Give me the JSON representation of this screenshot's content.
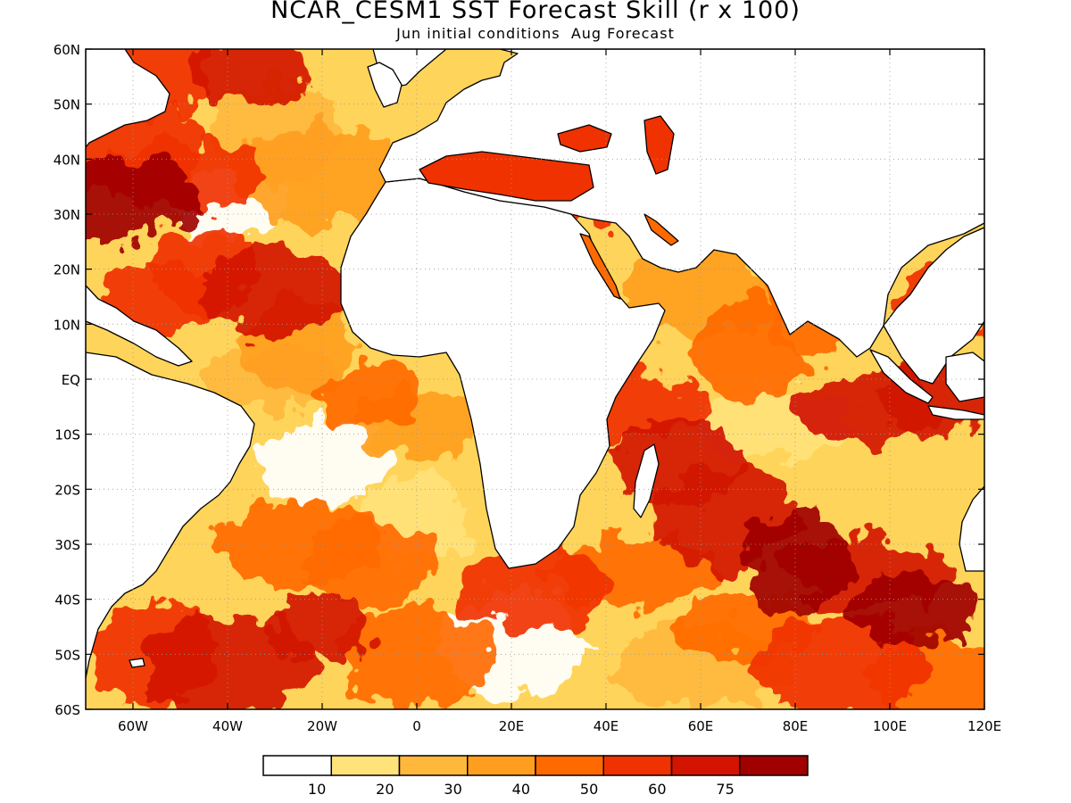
{
  "header": {
    "title": "NCAR_CESM1 SST Forecast Skill (r x 100)",
    "subtitle": "Jun initial conditions  Aug Forecast"
  },
  "map": {
    "lon_range": [
      -70,
      120
    ],
    "lat_range": [
      -60,
      60
    ],
    "lat_ticks": [
      {
        "value": 60,
        "label": "60N"
      },
      {
        "value": 50,
        "label": "50N"
      },
      {
        "value": 40,
        "label": "40N"
      },
      {
        "value": 30,
        "label": "30N"
      },
      {
        "value": 20,
        "label": "20N"
      },
      {
        "value": 10,
        "label": "10N"
      },
      {
        "value": 0,
        "label": "EQ"
      },
      {
        "value": -10,
        "label": "10S"
      },
      {
        "value": -20,
        "label": "20S"
      },
      {
        "value": -30,
        "label": "30S"
      },
      {
        "value": -40,
        "label": "40S"
      },
      {
        "value": -50,
        "label": "50S"
      },
      {
        "value": -60,
        "label": "60S"
      }
    ],
    "lon_ticks": [
      {
        "value": -60,
        "label": "60W"
      },
      {
        "value": -40,
        "label": "40W"
      },
      {
        "value": -20,
        "label": "20W"
      },
      {
        "value": 0,
        "label": "0"
      },
      {
        "value": 20,
        "label": "20E"
      },
      {
        "value": 40,
        "label": "40E"
      },
      {
        "value": 60,
        "label": "60E"
      },
      {
        "value": 80,
        "label": "80E"
      },
      {
        "value": 100,
        "label": "100E"
      },
      {
        "value": 120,
        "label": "120E"
      }
    ],
    "grid": true
  },
  "colorbar": {
    "labels": [
      "10",
      "20",
      "30",
      "40",
      "50",
      "60",
      "75"
    ],
    "colors": [
      "#ffffff",
      "#ffe27a",
      "#ffb83c",
      "#ff9e1e",
      "#ff6a00",
      "#f03200",
      "#d21400",
      "#a00000"
    ]
  },
  "skill_regions": [
    {
      "lon": -57,
      "lat": 55,
      "value": 55
    },
    {
      "lon": -35,
      "lat": 56,
      "value": 60
    },
    {
      "lon": -62,
      "lat": 42,
      "value": 55
    },
    {
      "lon": -65,
      "lat": 33,
      "value": 75
    },
    {
      "lon": -50,
      "lat": 37,
      "value": 55
    },
    {
      "lon": -40,
      "lat": 32,
      "value": 5
    },
    {
      "lon": -30,
      "lat": 44,
      "value": 20
    },
    {
      "lon": -20,
      "lat": 37,
      "value": 35
    },
    {
      "lon": -45,
      "lat": 20,
      "value": 55
    },
    {
      "lon": -30,
      "lat": 16,
      "value": 60
    },
    {
      "lon": -55,
      "lat": 15,
      "value": 50
    },
    {
      "lon": -25,
      "lat": 6,
      "value": 30
    },
    {
      "lon": -30,
      "lat": 0,
      "value": 20
    },
    {
      "lon": -10,
      "lat": -3,
      "value": 40
    },
    {
      "lon": 0,
      "lat": -8,
      "value": 30
    },
    {
      "lon": -20,
      "lat": -15,
      "value": 5
    },
    {
      "lon": -25,
      "lat": -30,
      "value": 45
    },
    {
      "lon": -10,
      "lat": -33,
      "value": 40
    },
    {
      "lon": 0,
      "lat": -25,
      "value": 15
    },
    {
      "lon": -55,
      "lat": -50,
      "value": 55
    },
    {
      "lon": -40,
      "lat": -52,
      "value": 60
    },
    {
      "lon": -20,
      "lat": -45,
      "value": 60
    },
    {
      "lon": 0,
      "lat": -50,
      "value": 40
    },
    {
      "lon": 20,
      "lat": -48,
      "value": 5
    },
    {
      "lon": 25,
      "lat": -38,
      "value": 50
    },
    {
      "lon": 45,
      "lat": -35,
      "value": 40
    },
    {
      "lon": 45,
      "lat": -5,
      "value": 55
    },
    {
      "lon": 55,
      "lat": -15,
      "value": 60
    },
    {
      "lon": 65,
      "lat": -25,
      "value": 60
    },
    {
      "lon": 80,
      "lat": -33,
      "value": 75
    },
    {
      "lon": 95,
      "lat": -35,
      "value": 60
    },
    {
      "lon": 105,
      "lat": -42,
      "value": 75
    },
    {
      "lon": 95,
      "lat": -5,
      "value": 65
    },
    {
      "lon": 110,
      "lat": -3,
      "value": 60
    },
    {
      "lon": 70,
      "lat": 5,
      "value": 45
    },
    {
      "lon": 60,
      "lat": 15,
      "value": 30
    },
    {
      "lon": 85,
      "lat": 12,
      "value": 40
    },
    {
      "lon": 75,
      "lat": -8,
      "value": 10
    },
    {
      "lon": 90,
      "lat": -52,
      "value": 50
    },
    {
      "lon": 110,
      "lat": -55,
      "value": 40
    },
    {
      "lon": 30,
      "lat": 35,
      "value": 55
    },
    {
      "lon": 40,
      "lat": 43,
      "value": 55
    },
    {
      "lon": 30,
      "lat": 44,
      "value": 60
    },
    {
      "lon": 113,
      "lat": 15,
      "value": 50
    },
    {
      "lon": 60,
      "lat": -52,
      "value": 20
    },
    {
      "lon": 70,
      "lat": -45,
      "value": 40
    }
  ]
}
